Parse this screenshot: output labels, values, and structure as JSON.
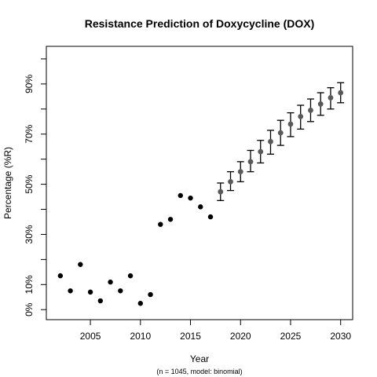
{
  "chart_data": {
    "type": "scatter",
    "title": "Resistance Prediction of Doxycycline (DOX)",
    "xlabel": "Year",
    "ylabel": "Percentage (%R)",
    "note": "(n = 1045, model: binomial)",
    "xlim": [
      2000.6,
      2031.2
    ],
    "ylim": [
      -4,
      105
    ],
    "xticks": [
      {
        "value": 2005,
        "label": "2005"
      },
      {
        "value": 2010,
        "label": "2010"
      },
      {
        "value": 2015,
        "label": "2015"
      },
      {
        "value": 2020,
        "label": "2020"
      },
      {
        "value": 2025,
        "label": "2025"
      },
      {
        "value": 2030,
        "label": "2030"
      }
    ],
    "yticks": [
      {
        "value": 0,
        "label": "0%"
      },
      {
        "value": 10,
        "label": "10%"
      },
      {
        "value": 20,
        "label": ""
      },
      {
        "value": 30,
        "label": "30%"
      },
      {
        "value": 40,
        "label": ""
      },
      {
        "value": 50,
        "label": "50%"
      },
      {
        "value": 60,
        "label": ""
      },
      {
        "value": 70,
        "label": "70%"
      },
      {
        "value": 80,
        "label": ""
      },
      {
        "value": 90,
        "label": "90%"
      },
      {
        "value": 100,
        "label": ""
      }
    ],
    "grid": false,
    "colors": {
      "observed": "#000000",
      "predicted": "#595959",
      "error_bar": "#000000"
    },
    "series": [
      {
        "kind": "observed",
        "points": [
          {
            "x": 2002,
            "y": 13.5
          },
          {
            "x": 2003,
            "y": 7.5
          },
          {
            "x": 2004,
            "y": 18.0
          },
          {
            "x": 2005,
            "y": 7.0
          },
          {
            "x": 2006,
            "y": 3.5
          },
          {
            "x": 2007,
            "y": 11.0
          },
          {
            "x": 2008,
            "y": 7.5
          },
          {
            "x": 2009,
            "y": 13.5
          },
          {
            "x": 2010,
            "y": 2.5
          },
          {
            "x": 2011,
            "y": 6.0
          },
          {
            "x": 2012,
            "y": 34.0
          },
          {
            "x": 2013,
            "y": 36.0
          },
          {
            "x": 2014,
            "y": 45.5
          },
          {
            "x": 2015,
            "y": 44.5
          },
          {
            "x": 2016,
            "y": 41.0
          },
          {
            "x": 2017,
            "y": 37.0
          }
        ]
      },
      {
        "kind": "predicted",
        "points": [
          {
            "x": 2018,
            "y": 47.0,
            "lo": 43.5,
            "hi": 50.5
          },
          {
            "x": 2019,
            "y": 51.0,
            "lo": 47.5,
            "hi": 55.0
          },
          {
            "x": 2020,
            "y": 55.0,
            "lo": 51.0,
            "hi": 59.0
          },
          {
            "x": 2021,
            "y": 59.0,
            "lo": 55.0,
            "hi": 63.5
          },
          {
            "x": 2022,
            "y": 63.0,
            "lo": 58.5,
            "hi": 67.5
          },
          {
            "x": 2023,
            "y": 67.0,
            "lo": 62.0,
            "hi": 71.5
          },
          {
            "x": 2024,
            "y": 70.5,
            "lo": 65.5,
            "hi": 75.5
          },
          {
            "x": 2025,
            "y": 74.0,
            "lo": 69.0,
            "hi": 78.5
          },
          {
            "x": 2026,
            "y": 77.0,
            "lo": 72.0,
            "hi": 81.5
          },
          {
            "x": 2027,
            "y": 79.5,
            "lo": 75.0,
            "hi": 84.0
          },
          {
            "x": 2028,
            "y": 82.0,
            "lo": 77.5,
            "hi": 86.5
          },
          {
            "x": 2029,
            "y": 84.5,
            "lo": 80.0,
            "hi": 88.5
          },
          {
            "x": 2030,
            "y": 86.5,
            "lo": 82.5,
            "hi": 90.5
          }
        ]
      }
    ]
  }
}
